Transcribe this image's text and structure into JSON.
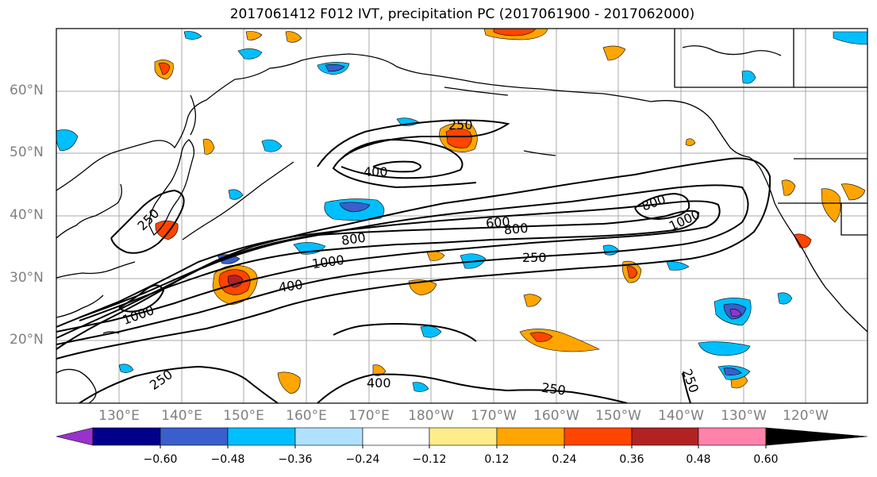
{
  "title": "2017061412 F012 IVT, precipitation PC (2017061900 - 2017062000)",
  "lat_labels": [
    "60°N",
    "50°N",
    "40°N",
    "30°N",
    "20°N"
  ],
  "lon_labels": [
    "130°E",
    "140°E",
    "150°E",
    "160°E",
    "170°E",
    "180°W",
    "170°W",
    "160°W",
    "150°W",
    "140°W",
    "130°W",
    "120°W"
  ],
  "contour_labels": [
    "250",
    "400",
    "250",
    "800",
    "1000",
    "600",
    "800",
    "800",
    "1000",
    "250",
    "400",
    "1000",
    "250",
    "400",
    "250",
    "250"
  ],
  "colorbar": {
    "colors": [
      "#9932cc",
      "#00008b",
      "#3a5fcd",
      "#00bfff",
      "#b0e2ff",
      "#ffffff",
      "#ffec8b",
      "#ffa500",
      "#ff4500",
      "#b22222",
      "#ff82ab"
    ],
    "ticks": [
      "−0.60",
      "−0.48",
      "−0.36",
      "−0.24",
      "−0.12",
      "0.12",
      "0.24",
      "0.36",
      "0.48",
      "0.60"
    ]
  }
}
